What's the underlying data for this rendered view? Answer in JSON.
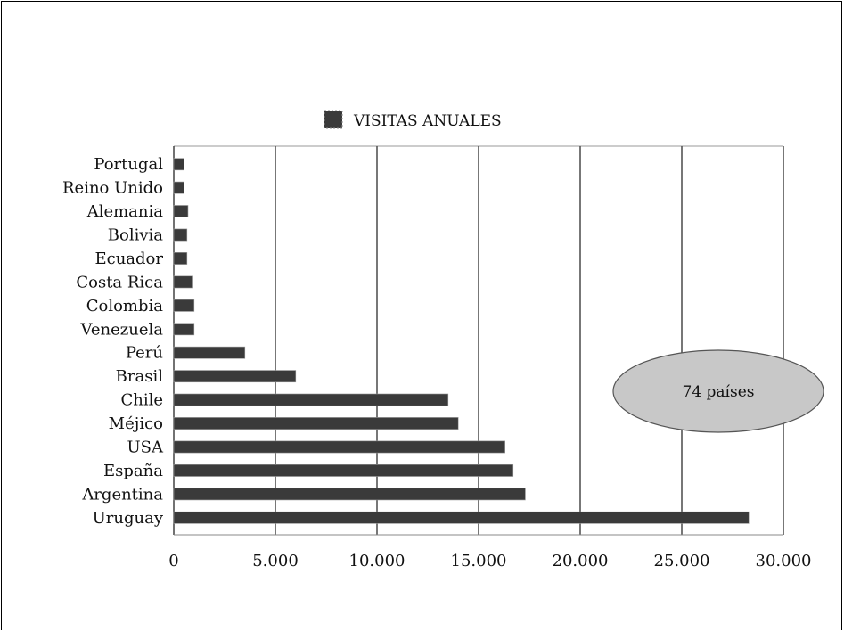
{
  "chart_data": {
    "type": "bar",
    "orientation": "horizontal",
    "categories": [
      "Portugal",
      "Reino Unido",
      "Alemania",
      "Bolivia",
      "Ecuador",
      "Costa Rica",
      "Colombia",
      "Venezuela",
      "Perú",
      "Brasil",
      "Chile",
      "Méjico",
      "USA",
      "España",
      "Argentina",
      "Uruguay"
    ],
    "series": [
      {
        "name": "VISITAS ANUALES",
        "values": [
          500,
          500,
          700,
          650,
          650,
          900,
          1000,
          1000,
          3500,
          6000,
          13500,
          14000,
          16300,
          16700,
          17300,
          28300
        ]
      }
    ],
    "x_ticks": [
      "0",
      "5.000",
      "10.000",
      "15.000",
      "20.000",
      "25.000",
      "30.000"
    ],
    "xlim": [
      0,
      30000
    ],
    "grid": "vertical",
    "legend": "top",
    "bar_color": "#3a3a3a",
    "annotation": {
      "text": "74 países",
      "fill": "#c8c8c8",
      "position": "right"
    }
  }
}
